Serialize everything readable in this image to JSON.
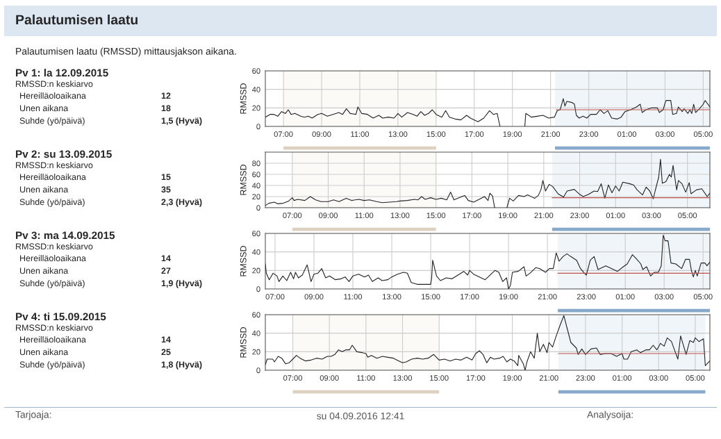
{
  "chart_data": [
    {
      "type": "other",
      "title": "Palautumisen laatu",
      "subtitle": "Palautumisen laatu (RMSSD) mittausjakson aikana."
    },
    {
      "type": "other",
      "title": "Pv 1: la 12.09.2015",
      "annotations": [
        "RMSSD:n keskiarvo",
        "Hereilläoloaikana",
        "12",
        "Unen aikana",
        "18",
        "Suhde (yö/päivä)",
        "1,5 (Hyvä)"
      ]
    },
    {
      "type": "line",
      "ylabel": "RMSSD",
      "xlim": [
        "2015-09-12T06:03",
        "2015-09-13T05:21"
      ],
      "ylim": [
        0,
        60
      ],
      "yticks": [
        0,
        20,
        40,
        60
      ],
      "xticks": [
        {
          "value": "2015-09-12T07:00",
          "label": "07:00"
        },
        {
          "value": "2015-09-12T09:00",
          "label": "09:00"
        },
        {
          "value": "2015-09-12T11:00",
          "label": "11:00"
        },
        {
          "value": "2015-09-12T13:00",
          "label": "13:00"
        },
        {
          "value": "2015-09-12T15:00",
          "label": "15:00"
        },
        {
          "value": "2015-09-12T17:00",
          "label": "17:00"
        },
        {
          "value": "2015-09-12T19:00",
          "label": "19:00"
        },
        {
          "value": "2015-09-12T21:00",
          "label": "21:00"
        },
        {
          "value": "2015-09-12T23:00",
          "label": "23:00"
        },
        {
          "value": "2015-09-13T01:00",
          "label": "01:00"
        },
        {
          "value": "2015-09-13T03:00",
          "label": "03:00"
        },
        {
          "value": "2015-09-13T05:00",
          "label": "05:00"
        }
      ],
      "grid": true,
      "bands": [
        {
          "axis": "x",
          "from": "2015-09-12T07:00",
          "to": "2015-09-12T15:00",
          "color": "#ddd2c0"
        },
        {
          "axis": "x",
          "from": "2015-09-12T21:14",
          "to": "2015-09-13T05:21",
          "color": "#86a9cc"
        }
      ],
      "series": [
        {
          "color": "#222222",
          "x": [
            "2015-09-12T06:03",
            "2015-09-12T06:18",
            "2015-09-12T06:30",
            "2015-09-12T06:42",
            "2015-09-12T06:54",
            "2015-09-12T07:06",
            "2015-09-12T07:15",
            "2015-09-12T07:24",
            "2015-09-12T07:36",
            "2015-09-12T07:54",
            "2015-09-12T08:06",
            "2015-09-12T08:18",
            "2015-09-12T08:30",
            "2015-09-12T08:48",
            "2015-09-12T09:00",
            "2015-09-12T09:18",
            "2015-09-12T09:36",
            "2015-09-12T09:54",
            "2015-09-12T10:06",
            "2015-09-12T10:18",
            "2015-09-12T10:30",
            "2015-09-12T10:48",
            "2015-09-12T10:54",
            "2015-09-12T11:06",
            "2015-09-12T11:24",
            "2015-09-12T11:42",
            "2015-09-12T12:00",
            "2015-09-12T12:12",
            "2015-09-12T12:30",
            "2015-09-12T12:48",
            "2015-09-12T13:00",
            "2015-09-12T13:12",
            "2015-09-12T13:30",
            "2015-09-12T13:48",
            "2015-09-12T14:00",
            "2015-09-12T14:12",
            "2015-09-12T14:24",
            "2015-09-12T14:36",
            "2015-09-12T14:48",
            "2015-09-12T15:00",
            "2015-09-12T15:18",
            "2015-09-12T15:30",
            "2015-09-12T15:42",
            "2015-09-12T16:00",
            "2015-09-12T16:18",
            "2015-09-12T16:36",
            "2015-09-12T16:48",
            "2015-09-12T17:00",
            "2015-09-12T17:12",
            "2015-09-12T17:30",
            "2015-09-12T17:48",
            "2015-09-12T18:00",
            "2015-09-12T18:12",
            "2015-09-12T18:21",
            "2015-09-12T19:00",
            "2015-09-12T19:39",
            "2015-09-12T19:42",
            "2015-09-12T20:00",
            "2015-09-12T20:18",
            "2015-09-12T20:36",
            "2015-09-12T20:54",
            "2015-09-12T21:12",
            "2015-09-12T21:21",
            "2015-09-12T21:30",
            "2015-09-12T21:36",
            "2015-09-12T21:40",
            "2015-09-12T21:45",
            "2015-09-12T21:51",
            "2015-09-12T22:06",
            "2015-09-12T22:15",
            "2015-09-12T22:21",
            "2015-09-12T22:30",
            "2015-09-12T22:42",
            "2015-09-12T22:54",
            "2015-09-12T23:06",
            "2015-09-12T23:24",
            "2015-09-12T23:36",
            "2015-09-12T23:48",
            "2015-09-13T00:00",
            "2015-09-13T00:12",
            "2015-09-13T00:30",
            "2015-09-13T00:42",
            "2015-09-13T00:54",
            "2015-09-13T01:12",
            "2015-09-13T01:30",
            "2015-09-13T01:42",
            "2015-09-13T01:48",
            "2015-09-13T02:00",
            "2015-09-13T02:18",
            "2015-09-13T02:36",
            "2015-09-13T02:42",
            "2015-09-13T02:54",
            "2015-09-13T03:00",
            "2015-09-13T03:03",
            "2015-09-13T03:18",
            "2015-09-13T03:24",
            "2015-09-13T03:36",
            "2015-09-13T03:42",
            "2015-09-13T03:54",
            "2015-09-13T04:00",
            "2015-09-13T04:12",
            "2015-09-13T04:18",
            "2015-09-13T04:24",
            "2015-09-13T04:30",
            "2015-09-13T04:36",
            "2015-09-13T04:48",
            "2015-09-13T05:00",
            "2015-09-13T05:06",
            "2015-09-13T05:21"
          ],
          "values": [
            10,
            13,
            13,
            11,
            16,
            14,
            18,
            13,
            14,
            11,
            10,
            11,
            9,
            13,
            14,
            11,
            13,
            15,
            13,
            19,
            14,
            13,
            21,
            14,
            13,
            9,
            12,
            9,
            10,
            9,
            14,
            10,
            15,
            13,
            11,
            16,
            12,
            14,
            18,
            13,
            10,
            17,
            10,
            8,
            7,
            12,
            9,
            7,
            5,
            9,
            17,
            13,
            14,
            0,
            null,
            0,
            14,
            10,
            11,
            12,
            9,
            10,
            17,
            18,
            25,
            30,
            22,
            27,
            26,
            24,
            12,
            9,
            11,
            9,
            13,
            13,
            18,
            14,
            17,
            9,
            8,
            10,
            16,
            18,
            21,
            24,
            15,
            18,
            20,
            20,
            15,
            18,
            25,
            28,
            28,
            13,
            14,
            21,
            16,
            19,
            14,
            18,
            14,
            24,
            15,
            19,
            24,
            28,
            21
          ]
        },
        {
          "type": "line",
          "color": "#c0504d",
          "x": [
            "2015-09-12T21:18",
            "2015-09-13T05:21"
          ],
          "values": [
            18,
            18
          ]
        }
      ]
    },
    {
      "type": "other",
      "title": "Pv 2: su 13.09.2015",
      "annotations": [
        "RMSSD:n keskiarvo",
        "Hereilläoloaikana",
        "15",
        "Unen aikana",
        "35",
        "Suhde (yö/päivä)",
        "2,3 (Hyvä)"
      ]
    },
    {
      "type": "line",
      "ylabel": "RMSSD",
      "xlim": [
        "2015-09-13T05:30",
        "2015-09-14T06:15"
      ],
      "ylim": [
        0,
        100
      ],
      "yticks": [
        0,
        20,
        40,
        60,
        80
      ],
      "xticks": [
        {
          "value": "2015-09-13T07:00",
          "label": "07:00"
        },
        {
          "value": "2015-09-13T09:00",
          "label": "09:00"
        },
        {
          "value": "2015-09-13T11:00",
          "label": "11:00"
        },
        {
          "value": "2015-09-13T13:00",
          "label": "13:00"
        },
        {
          "value": "2015-09-13T15:00",
          "label": "15:00"
        },
        {
          "value": "2015-09-13T17:00",
          "label": "17:00"
        },
        {
          "value": "2015-09-13T19:00",
          "label": "19:00"
        },
        {
          "value": "2015-09-13T21:00",
          "label": "21:00"
        },
        {
          "value": "2015-09-13T23:00",
          "label": "23:00"
        },
        {
          "value": "2015-09-14T01:00",
          "label": "01:00"
        },
        {
          "value": "2015-09-14T03:00",
          "label": "03:00"
        },
        {
          "value": "2015-09-14T05:00",
          "label": "05:00"
        }
      ],
      "grid": true,
      "bands": [
        {
          "axis": "x",
          "from": "2015-09-13T07:00",
          "to": "2015-09-13T15:00",
          "color": "#ddd2c0"
        },
        {
          "axis": "x",
          "from": "2015-09-13T21:28",
          "to": "2015-09-14T06:15",
          "color": "#86a9cc"
        }
      ],
      "series": [
        {
          "color": "#222222",
          "x": [
            "2015-09-13T05:30",
            "2015-09-13T05:42",
            "2015-09-13T06:00",
            "2015-09-13T06:12",
            "2015-09-13T06:30",
            "2015-09-13T06:48",
            "2015-09-13T07:00",
            "2015-09-13T07:06",
            "2015-09-13T07:18",
            "2015-09-13T07:42",
            "2015-09-13T08:00",
            "2015-09-13T08:18",
            "2015-09-13T08:36",
            "2015-09-13T09:00",
            "2015-09-13T09:18",
            "2015-09-13T09:36",
            "2015-09-13T10:00",
            "2015-09-13T10:18",
            "2015-09-13T10:42",
            "2015-09-13T11:00",
            "2015-09-13T11:18",
            "2015-09-13T11:42",
            "2015-09-13T12:00",
            "2015-09-13T12:24",
            "2015-09-13T12:48",
            "2015-09-13T13:00",
            "2015-09-13T13:24",
            "2015-09-13T13:48",
            "2015-09-13T14:00",
            "2015-09-13T14:12",
            "2015-09-13T14:24",
            "2015-09-13T14:42",
            "2015-09-13T15:00",
            "2015-09-13T15:18",
            "2015-09-13T15:36",
            "2015-09-13T15:49",
            "2015-09-13T16:00",
            "2015-09-13T16:18",
            "2015-09-13T16:36",
            "2015-09-13T16:48",
            "2015-09-13T17:06",
            "2015-09-13T17:24",
            "2015-09-13T17:42",
            "2015-09-13T17:54",
            "2015-09-13T18:00",
            "2015-09-13T18:09",
            "2015-09-13T18:16",
            "2015-09-13T18:36",
            "2015-09-13T18:57",
            "2015-09-13T19:06",
            "2015-09-13T19:18",
            "2015-09-13T19:36",
            "2015-09-13T19:54",
            "2015-09-13T20:06",
            "2015-09-13T20:30",
            "2015-09-13T20:42",
            "2015-09-13T20:51",
            "2015-09-13T20:57",
            "2015-09-13T21:06",
            "2015-09-13T21:18",
            "2015-09-13T21:30",
            "2015-09-13T21:48",
            "2015-09-13T22:06",
            "2015-09-13T22:18",
            "2015-09-13T22:42",
            "2015-09-13T23:00",
            "2015-09-13T23:12",
            "2015-09-13T23:30",
            "2015-09-13T23:48",
            "2015-09-14T00:00",
            "2015-09-14T00:12",
            "2015-09-14T00:24",
            "2015-09-14T00:36",
            "2015-09-14T00:48",
            "2015-09-14T01:00",
            "2015-09-14T01:12",
            "2015-09-14T01:24",
            "2015-09-14T01:48",
            "2015-09-14T02:00",
            "2015-09-14T02:12",
            "2015-09-14T02:30",
            "2015-09-14T02:42",
            "2015-09-14T02:54",
            "2015-09-14T03:06",
            "2015-09-14T03:12",
            "2015-09-14T03:24",
            "2015-09-14T03:30",
            "2015-09-14T03:36",
            "2015-09-14T03:48",
            "2015-09-14T04:00",
            "2015-09-14T04:06",
            "2015-09-14T04:12",
            "2015-09-14T04:24",
            "2015-09-14T04:30",
            "2015-09-14T04:42",
            "2015-09-14T04:54",
            "2015-09-14T05:06",
            "2015-09-14T05:12",
            "2015-09-14T05:30",
            "2015-09-14T05:48",
            "2015-09-14T06:06",
            "2015-09-14T06:15"
          ],
          "values": [
            4,
            8,
            10,
            7,
            8,
            12,
            18,
            13,
            15,
            13,
            20,
            14,
            11,
            11,
            14,
            11,
            17,
            13,
            15,
            13,
            14,
            11,
            9,
            10,
            11,
            12,
            13,
            15,
            14,
            20,
            15,
            18,
            15,
            17,
            14,
            28,
            14,
            18,
            22,
            13,
            10,
            15,
            20,
            13,
            26,
            21,
            0,
            null,
            0,
            17,
            12,
            22,
            20,
            23,
            17,
            22,
            33,
            49,
            30,
            42,
            38,
            25,
            19,
            30,
            33,
            24,
            20,
            24,
            30,
            29,
            43,
            17,
            41,
            27,
            39,
            30,
            46,
            43,
            41,
            32,
            23,
            37,
            30,
            16,
            30,
            55,
            87,
            44,
            47,
            60,
            55,
            76,
            32,
            49,
            43,
            28,
            45,
            25,
            32,
            34,
            20,
            26
          ]
        },
        {
          "type": "line",
          "color": "#c0504d",
          "x": [
            "2015-09-13T21:28",
            "2015-09-14T06:15"
          ],
          "values": [
            18,
            18
          ]
        }
      ]
    },
    {
      "type": "other",
      "title": "Pv 3: ma 14.09.2015",
      "annotations": [
        "RMSSD:n keskiarvo",
        "Hereilläoloaikana",
        "14",
        "Unen aikana",
        "27",
        "Suhde (yö/päivä)",
        "1,9 (Hyvä)"
      ]
    },
    {
      "type": "line",
      "ylabel": "RMSSD",
      "xlim": [
        "2015-09-14T06:30",
        "2015-09-15T05:21"
      ],
      "ylim": [
        0,
        60
      ],
      "yticks": [
        0,
        20,
        40,
        60
      ],
      "xticks": [
        {
          "value": "2015-09-14T07:00",
          "label": "07:00"
        },
        {
          "value": "2015-09-14T09:00",
          "label": "09:00"
        },
        {
          "value": "2015-09-14T11:00",
          "label": "11:00"
        },
        {
          "value": "2015-09-14T13:00",
          "label": "13:00"
        },
        {
          "value": "2015-09-14T15:00",
          "label": "15:00"
        },
        {
          "value": "2015-09-14T17:00",
          "label": "17:00"
        },
        {
          "value": "2015-09-14T19:00",
          "label": "19:00"
        },
        {
          "value": "2015-09-14T21:00",
          "label": "21:00"
        },
        {
          "value": "2015-09-14T23:00",
          "label": "23:00"
        },
        {
          "value": "2015-09-15T01:00",
          "label": "01:00"
        },
        {
          "value": "2015-09-15T03:00",
          "label": "03:00"
        },
        {
          "value": "2015-09-15T05:00",
          "label": "05:00"
        }
      ],
      "grid": true,
      "bands": [
        {
          "axis": "x",
          "from": "2015-09-14T21:32",
          "to": "2015-09-15T05:21",
          "color": "#86a9cc"
        }
      ],
      "series": [
        {
          "color": "#222222",
          "x": [
            "2015-09-14T06:30",
            "2015-09-14T06:33",
            "2015-09-14T06:42",
            "2015-09-14T06:54",
            "2015-09-14T07:06",
            "2015-09-14T07:12",
            "2015-09-14T07:24",
            "2015-09-14T07:36",
            "2015-09-14T07:48",
            "2015-09-14T07:57",
            "2015-09-14T08:03",
            "2015-09-14T08:12",
            "2015-09-14T08:24",
            "2015-09-14T08:39",
            "2015-09-14T08:51",
            "2015-09-14T09:00",
            "2015-09-14T09:12",
            "2015-09-14T09:24",
            "2015-09-14T09:36",
            "2015-09-14T09:48",
            "2015-09-14T10:06",
            "2015-09-14T10:24",
            "2015-09-14T10:36",
            "2015-09-14T10:48",
            "2015-09-14T11:00",
            "2015-09-14T11:18",
            "2015-09-14T11:36",
            "2015-09-14T11:48",
            "2015-09-14T12:00",
            "2015-09-14T12:18",
            "2015-09-14T12:30",
            "2015-09-14T12:48",
            "2015-09-14T13:00",
            "2015-09-14T13:18",
            "2015-09-14T13:36",
            "2015-09-14T13:48",
            "2015-09-14T14:00",
            "2015-09-14T14:18",
            "2015-09-14T14:36",
            "2015-09-14T15:00",
            "2015-09-14T15:03",
            "2015-09-14T15:06",
            "2015-09-14T15:18",
            "2015-09-14T15:30",
            "2015-09-14T15:48",
            "2015-09-14T16:06",
            "2015-09-14T16:24",
            "2015-09-14T16:42",
            "2015-09-14T16:54",
            "2015-09-14T17:00",
            "2015-09-14T17:12",
            "2015-09-14T17:30",
            "2015-09-14T17:48",
            "2015-09-14T18:00",
            "2015-09-14T18:18",
            "2015-09-14T18:30",
            "2015-09-14T18:42",
            "2015-09-14T18:54",
            "2015-09-14T19:00",
            "2015-09-14T19:06",
            "2015-09-14T19:12",
            "2015-09-14T19:30",
            "2015-09-14T19:48",
            "2015-09-14T19:54",
            "2015-09-14T20:06",
            "2015-09-14T20:24",
            "2015-09-14T20:36",
            "2015-09-14T20:54",
            "2015-09-14T21:06",
            "2015-09-14T21:18",
            "2015-09-14T21:27",
            "2015-09-14T21:36",
            "2015-09-14T21:48",
            "2015-09-14T22:00",
            "2015-09-14T22:12",
            "2015-09-14T22:30",
            "2015-09-14T22:42",
            "2015-09-14T22:54",
            "2015-09-14T23:00",
            "2015-09-14T23:12",
            "2015-09-14T23:24",
            "2015-09-14T23:36",
            "2015-09-15T00:00",
            "2015-09-15T00:18",
            "2015-09-15T00:36",
            "2015-09-15T00:54",
            "2015-09-15T01:06",
            "2015-09-15T01:22",
            "2015-09-15T01:36",
            "2015-09-15T01:48",
            "2015-09-15T01:54",
            "2015-09-15T02:06",
            "2015-09-15T02:18",
            "2015-09-15T02:30",
            "2015-09-15T02:42",
            "2015-09-15T02:51",
            "2015-09-15T02:57",
            "2015-09-15T03:03",
            "2015-09-15T03:12",
            "2015-09-15T03:21",
            "2015-09-15T03:36",
            "2015-09-15T03:54",
            "2015-09-15T04:06",
            "2015-09-15T04:18",
            "2015-09-15T04:24",
            "2015-09-15T04:30",
            "2015-09-15T04:36",
            "2015-09-15T04:42",
            "2015-09-15T04:54",
            "2015-09-15T05:06",
            "2015-09-15T05:12",
            "2015-09-15T05:21"
          ],
          "values": [
            27,
            17,
            10,
            17,
            14,
            8,
            14,
            9,
            18,
            11,
            18,
            12,
            15,
            26,
            8,
            16,
            17,
            22,
            12,
            14,
            10,
            11,
            13,
            8,
            14,
            16,
            13,
            15,
            8,
            12,
            9,
            10,
            13,
            16,
            18,
            17,
            7,
            5,
            5,
            5,
            12,
            31,
            14,
            9,
            12,
            11,
            15,
            19,
            15,
            20,
            16,
            13,
            10,
            14,
            20,
            18,
            8,
            12,
            0,
            4,
            18,
            19,
            24,
            14,
            17,
            23,
            22,
            18,
            22,
            22,
            39,
            30,
            35,
            38,
            35,
            31,
            22,
            17,
            15,
            31,
            35,
            21,
            25,
            22,
            19,
            24,
            27,
            37,
            32,
            27,
            21,
            24,
            14,
            18,
            18,
            25,
            58,
            52,
            52,
            28,
            27,
            22,
            32,
            32,
            20,
            13,
            20,
            14,
            28,
            28,
            25,
            29
          ]
        },
        {
          "type": "line",
          "color": "#c0504d",
          "x": [
            "2015-09-14T21:32",
            "2015-09-15T05:21"
          ],
          "values": [
            17,
            17
          ]
        }
      ]
    },
    {
      "type": "other",
      "title": "Pv 4: ti 15.09.2015",
      "annotations": [
        "RMSSD:n keskiarvo",
        "Hereilläoloaikana",
        "14",
        "Unen aikana",
        "25",
        "Suhde (yö/päivä)",
        "1,8 (Hyvä)"
      ]
    },
    {
      "type": "line",
      "ylabel": "RMSSD",
      "xlim": [
        "2015-09-15T05:30",
        "2015-09-16T05:48"
      ],
      "ylim": [
        0,
        60
      ],
      "yticks": [
        0,
        20,
        40,
        60
      ],
      "xticks": [
        {
          "value": "2015-09-15T07:00",
          "label": "07:00"
        },
        {
          "value": "2015-09-15T09:00",
          "label": "09:00"
        },
        {
          "value": "2015-09-15T11:00",
          "label": "11:00"
        },
        {
          "value": "2015-09-15T13:00",
          "label": "13:00"
        },
        {
          "value": "2015-09-15T15:00",
          "label": "15:00"
        },
        {
          "value": "2015-09-15T17:00",
          "label": "17:00"
        },
        {
          "value": "2015-09-15T19:00",
          "label": "19:00"
        },
        {
          "value": "2015-09-15T21:00",
          "label": "21:00"
        },
        {
          "value": "2015-09-15T23:00",
          "label": "23:00"
        },
        {
          "value": "2015-09-16T01:00",
          "label": "01:00"
        },
        {
          "value": "2015-09-16T03:00",
          "label": "03:00"
        },
        {
          "value": "2015-09-16T05:00",
          "label": "05:00"
        }
      ],
      "grid": true,
      "bands": [
        {
          "axis": "x",
          "from": "2015-09-15T07:00",
          "to": "2015-09-15T15:00",
          "color": "#ddd2c0"
        },
        {
          "axis": "x",
          "from": "2015-09-15T21:31",
          "to": "2015-09-16T05:33",
          "color": "#86a9cc"
        }
      ],
      "series": [
        {
          "color": "#222222",
          "x": [
            "2015-09-15T05:30",
            "2015-09-15T05:36",
            "2015-09-15T05:54",
            "2015-09-15T06:00",
            "2015-09-15T06:12",
            "2015-09-15T06:24",
            "2015-09-15T06:36",
            "2015-09-15T06:48",
            "2015-09-15T07:00",
            "2015-09-15T07:12",
            "2015-09-15T07:24",
            "2015-09-15T07:42",
            "2015-09-15T08:00",
            "2015-09-15T08:18",
            "2015-09-15T08:36",
            "2015-09-15T08:54",
            "2015-09-15T09:06",
            "2015-09-15T09:18",
            "2015-09-15T09:30",
            "2015-09-15T09:42",
            "2015-09-15T09:54",
            "2015-09-15T10:06",
            "2015-09-15T10:15",
            "2015-09-15T10:30",
            "2015-09-15T10:48",
            "2015-09-15T11:00",
            "2015-09-15T11:06",
            "2015-09-15T11:18",
            "2015-09-15T11:36",
            "2015-09-15T11:54",
            "2015-09-15T12:12",
            "2015-09-15T12:30",
            "2015-09-15T12:48",
            "2015-09-15T13:00",
            "2015-09-15T13:12",
            "2015-09-15T13:30",
            "2015-09-15T13:48",
            "2015-09-15T14:06",
            "2015-09-15T14:24",
            "2015-09-15T14:42",
            "2015-09-15T15:00",
            "2015-09-15T15:18",
            "2015-09-15T15:36",
            "2015-09-15T15:54",
            "2015-09-15T16:12",
            "2015-09-15T16:30",
            "2015-09-15T16:48",
            "2015-09-15T17:00",
            "2015-09-15T17:12",
            "2015-09-15T17:24",
            "2015-09-15T17:36",
            "2015-09-15T17:48",
            "2015-09-15T18:00",
            "2015-09-15T18:18",
            "2015-09-15T18:30",
            "2015-09-15T18:42",
            "2015-09-15T18:54",
            "2015-09-15T19:06",
            "2015-09-15T19:18",
            "2015-09-15T19:21",
            "2015-09-15T19:36",
            "2015-09-15T19:42",
            "2015-09-15T19:48",
            "2015-09-15T20:00",
            "2015-09-15T20:12",
            "2015-09-15T20:22",
            "2015-09-15T20:30",
            "2015-09-15T20:42",
            "2015-09-15T20:54",
            "2015-09-15T21:00",
            "2015-09-15T21:12",
            "2015-09-15T21:24",
            "2015-09-15T21:36",
            "2015-09-15T21:49",
            "2015-09-15T22:00",
            "2015-09-15T22:12",
            "2015-09-15T22:30",
            "2015-09-15T22:36",
            "2015-09-15T22:48",
            "2015-09-15T23:00",
            "2015-09-15T23:18",
            "2015-09-15T23:36",
            "2015-09-15T23:48",
            "2015-09-16T00:06",
            "2015-09-16T00:24",
            "2015-09-16T00:42",
            "2015-09-16T01:00",
            "2015-09-16T01:06",
            "2015-09-16T01:18",
            "2015-09-16T01:30",
            "2015-09-16T01:48",
            "2015-09-16T02:00",
            "2015-09-16T02:18",
            "2015-09-16T02:30",
            "2015-09-16T02:42",
            "2015-09-16T02:54",
            "2015-09-16T03:06",
            "2015-09-16T03:18",
            "2015-09-16T03:28",
            "2015-09-16T03:42",
            "2015-09-16T03:54",
            "2015-09-16T04:03",
            "2015-09-16T04:12",
            "2015-09-16T04:30",
            "2015-09-16T04:42",
            "2015-09-16T04:54",
            "2015-09-16T05:00",
            "2015-09-16T05:12",
            "2015-09-16T05:27",
            "2015-09-16T05:33",
            "2015-09-16T05:39",
            "2015-09-16T05:48"
          ],
          "values": [
            6,
            12,
            12,
            9,
            15,
            13,
            7,
            8,
            12,
            16,
            13,
            10,
            11,
            13,
            12,
            15,
            15,
            17,
            22,
            20,
            22,
            22,
            27,
            20,
            19,
            18,
            14,
            16,
            13,
            15,
            14,
            13,
            10,
            8,
            9,
            12,
            13,
            12,
            13,
            17,
            11,
            12,
            10,
            12,
            11,
            14,
            11,
            18,
            21,
            17,
            8,
            14,
            12,
            13,
            15,
            9,
            12,
            10,
            5,
            16,
            7,
            0,
            9,
            20,
            13,
            40,
            20,
            28,
            19,
            30,
            25,
            37,
            48,
            59,
            45,
            30,
            24,
            17,
            23,
            17,
            23,
            24,
            17,
            18,
            18,
            15,
            18,
            12,
            12,
            20,
            22,
            19,
            22,
            22,
            27,
            22,
            29,
            26,
            35,
            31,
            20,
            12,
            37,
            17,
            32,
            30,
            35,
            31,
            34,
            5,
            7,
            10
          ]
        },
        {
          "type": "line",
          "color": "#c0504d",
          "x": [
            "2015-09-15T21:31",
            "2015-09-16T05:33"
          ],
          "values": [
            18,
            18
          ]
        }
      ]
    },
    {
      "type": "other",
      "annotations": [
        "Tarjoaja:",
        "su 04.09.2016 12:41",
        "Analysoija:"
      ]
    }
  ]
}
